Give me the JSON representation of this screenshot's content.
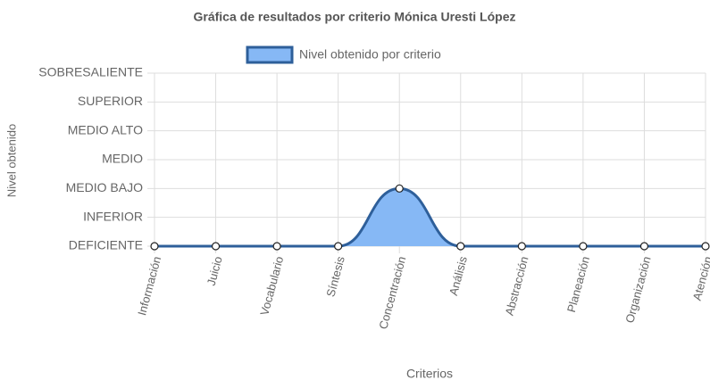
{
  "chart_data": {
    "type": "line",
    "title": "Gráfica de resultados por criterio Mónica Uresti López",
    "categories": [
      "Información",
      "Juicio",
      "Vocabulario",
      "Síntesis",
      "Concentración",
      "Análisis",
      "Abstracción",
      "Planeación",
      "Organización",
      "Atención"
    ],
    "series": [
      {
        "name": "Nivel obtenido por criterio",
        "color": "#2e5f9a",
        "fill_color": "#86b8f5",
        "values": [
          0,
          0,
          0,
          0,
          2,
          0,
          0,
          0,
          0,
          0
        ]
      }
    ],
    "ylim": [
      0,
      6
    ],
    "yticks": [
      {
        "value": 0,
        "label": "DEFICIENTE"
      },
      {
        "value": 1,
        "label": "INFERIOR"
      },
      {
        "value": 2,
        "label": "MEDIO BAJO"
      },
      {
        "value": 3,
        "label": "MEDIO"
      },
      {
        "value": 4,
        "label": "MEDIO ALTO"
      },
      {
        "value": 5,
        "label": "SUPERIOR"
      },
      {
        "value": 6,
        "label": "SOBRESALIENTE"
      }
    ],
    "xlabel": "Criterios",
    "ylabel": "Nivel obtenido",
    "grid": true,
    "legend": "top"
  }
}
